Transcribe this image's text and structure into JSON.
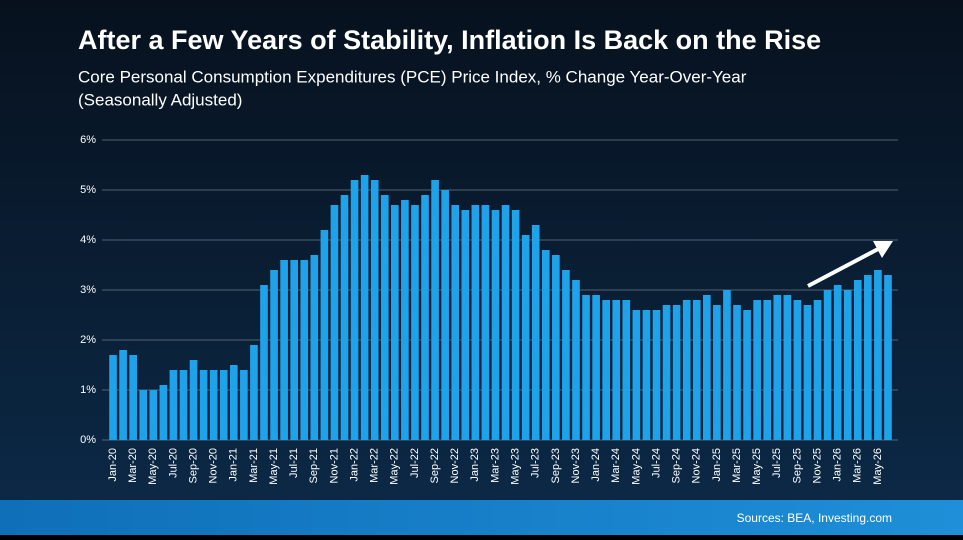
{
  "chart_data": {
    "type": "bar",
    "title": "After a Few Years of Stability, Inflation Is Back on the Rise",
    "subtitle": "Core Personal Consumption Expenditures (PCE) Price Index, % Change Year-Over-Year",
    "subtitle_2": "(Seasonally Adjusted)",
    "source": "Sources: BEA, Investing.com",
    "categories": [
      "Jan-20",
      null,
      "Mar-20",
      null,
      "May-20",
      null,
      "Jul-20",
      null,
      "Sep-20",
      null,
      "Nov-20",
      null,
      "Jan-21",
      null,
      "Mar-21",
      null,
      "May-21",
      null,
      "Jul-21",
      null,
      "Sep-21",
      null,
      "Nov-21",
      null,
      "Jan-22",
      null,
      "Mar-22",
      null,
      "May-22",
      null,
      "Jul-22",
      null,
      "Sep-22",
      null,
      "Nov-22",
      null,
      "Jan-23",
      null,
      "Mar-23",
      null,
      "May-23",
      null,
      "Jul-23",
      null,
      "Sep-23",
      null,
      "Nov-23",
      null,
      "Jan-24",
      null,
      "Mar-24",
      null,
      "May-24",
      null,
      "Jul-24",
      null,
      "Sep-24",
      null,
      "Nov-24",
      null,
      "Jan-25",
      null,
      "Mar-25",
      null,
      "May-25",
      null,
      "Jul-25",
      null,
      "Sep-25",
      null,
      "Nov-25",
      null,
      "Jan-26",
      null,
      "Mar-26",
      null,
      "May-26",
      null
    ],
    "values": [
      1.7,
      1.8,
      1.7,
      1.0,
      1.0,
      1.1,
      1.4,
      1.4,
      1.6,
      1.4,
      1.4,
      1.4,
      1.5,
      1.4,
      1.9,
      3.1,
      3.4,
      3.6,
      3.6,
      3.6,
      3.7,
      4.2,
      4.7,
      4.9,
      5.2,
      5.3,
      5.2,
      4.9,
      4.7,
      4.8,
      4.7,
      4.9,
      5.2,
      5.0,
      4.7,
      4.6,
      4.7,
      4.7,
      4.6,
      4.7,
      4.6,
      4.1,
      4.3,
      3.8,
      3.7,
      3.4,
      3.2,
      2.9,
      2.9,
      2.8,
      2.8,
      2.8,
      2.6,
      2.6,
      2.6,
      2.7,
      2.7,
      2.8,
      2.8,
      2.9,
      2.7,
      3.0,
      2.7,
      2.6,
      2.8,
      2.8,
      2.9,
      2.9,
      2.8,
      2.7,
      2.8,
      3.0,
      3.1,
      3.0,
      3.2,
      3.3,
      3.4,
      3.3
    ],
    "color": "#1ea3ea",
    "ylim": [
      0,
      6
    ],
    "yticks": [
      {
        "value": 0,
        "label": "0%"
      },
      {
        "value": 1,
        "label": "1%"
      },
      {
        "value": 2,
        "label": "2%"
      },
      {
        "value": 3,
        "label": "3%"
      },
      {
        "value": 4,
        "label": "4%"
      },
      {
        "value": 5,
        "label": "5%"
      },
      {
        "value": 6,
        "label": "6%"
      }
    ],
    "grid": true
  }
}
